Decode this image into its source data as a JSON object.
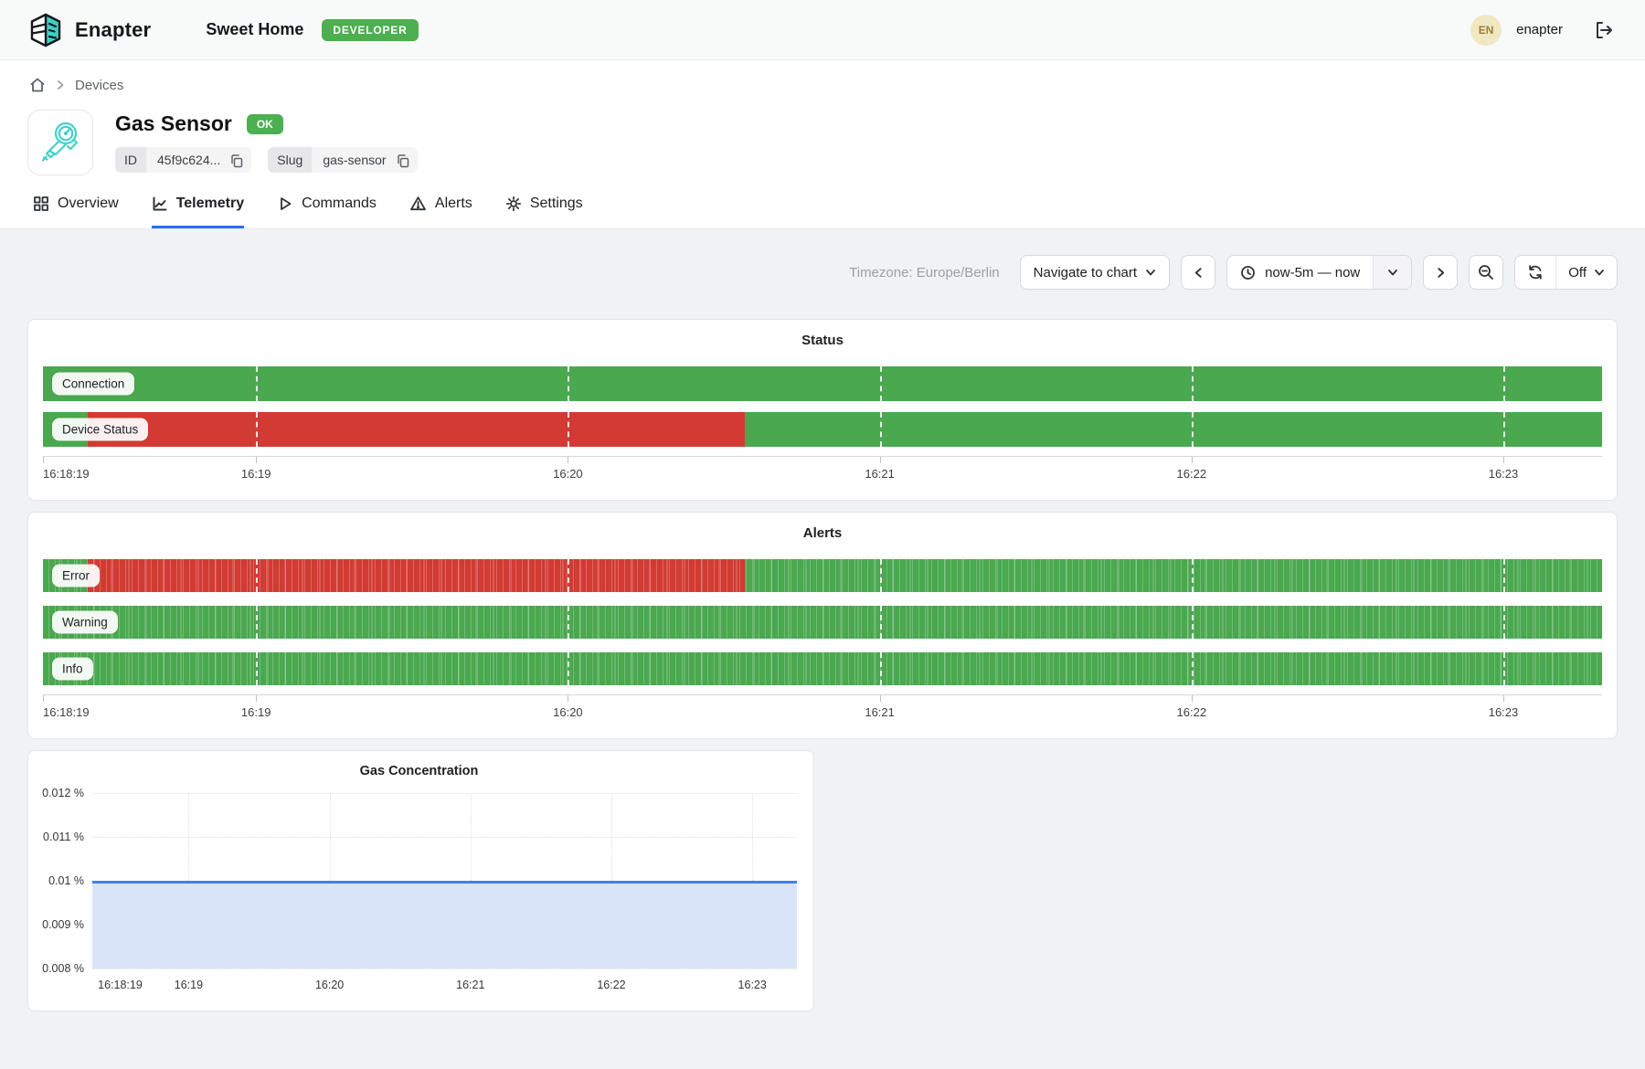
{
  "header": {
    "brand": "Enapter",
    "site_name": "Sweet Home",
    "env_badge": "DEVELOPER",
    "user_initials": "EN",
    "username": "enapter"
  },
  "breadcrumb": {
    "items": [
      "Devices"
    ]
  },
  "device": {
    "name": "Gas Sensor",
    "status_badge": "OK",
    "id_label": "ID",
    "id_value": "45f9c624...",
    "slug_label": "Slug",
    "slug_value": "gas-sensor"
  },
  "tabs": [
    {
      "label": "Overview",
      "active": false
    },
    {
      "label": "Telemetry",
      "active": true
    },
    {
      "label": "Commands",
      "active": false
    },
    {
      "label": "Alerts",
      "active": false
    },
    {
      "label": "Settings",
      "active": false
    }
  ],
  "toolbar": {
    "timezone_label": "Timezone: Europe/Berlin",
    "navigate_label": "Navigate to chart",
    "time_range_label": "now-5m — now",
    "autorefresh_label": "Off"
  },
  "colors": {
    "ok_green": "#4aa84f",
    "error_red": "#d23b33",
    "badge_green": "#4caf50",
    "accent_blue": "#2a6df4",
    "gas_line_blue": "#447eec",
    "gas_fill_blue": "#d9e4f9",
    "logo_teal": "#3ed1c6"
  },
  "chart_data": [
    {
      "type": "heatmap",
      "subtype": "status-timeline",
      "title": "Status",
      "x_range": [
        "16:18:19",
        "16:23:19"
      ],
      "x_ticks": [
        "16:18:19",
        "16:19",
        "16:20",
        "16:21",
        "16:22",
        "16:23"
      ],
      "x_tick_pcts": [
        0,
        13.67,
        33.67,
        53.67,
        73.67,
        93.67
      ],
      "striped": false,
      "colors": {
        "ok": "#4aa84f",
        "error": "#d23b33"
      },
      "rows": [
        {
          "label": "Connection",
          "segments": [
            {
              "state": "ok",
              "from": "16:18:19",
              "to": "16:23:19",
              "from_pct": 0,
              "to_pct": 100
            }
          ]
        },
        {
          "label": "Device Status",
          "segments": [
            {
              "state": "ok",
              "from": "16:18:19",
              "to": "16:18:28",
              "from_pct": 0,
              "to_pct": 2.9
            },
            {
              "state": "error",
              "from": "16:18:28",
              "to": "16:20:34",
              "from_pct": 2.9,
              "to_pct": 45
            },
            {
              "state": "ok",
              "from": "16:20:34",
              "to": "16:23:19",
              "from_pct": 45,
              "to_pct": 100
            }
          ]
        }
      ]
    },
    {
      "type": "heatmap",
      "subtype": "status-timeline",
      "title": "Alerts",
      "x_range": [
        "16:18:19",
        "16:23:19"
      ],
      "x_ticks": [
        "16:18:19",
        "16:19",
        "16:20",
        "16:21",
        "16:22",
        "16:23"
      ],
      "x_tick_pcts": [
        0,
        13.67,
        33.67,
        53.67,
        73.67,
        93.67
      ],
      "striped": true,
      "colors": {
        "ok": "#4aa84f",
        "error": "#d23b33"
      },
      "rows": [
        {
          "label": "Error",
          "segments": [
            {
              "state": "ok",
              "from": "16:18:19",
              "to": "16:18:28",
              "from_pct": 0,
              "to_pct": 2.9
            },
            {
              "state": "error",
              "from": "16:18:28",
              "to": "16:20:34",
              "from_pct": 2.9,
              "to_pct": 45
            },
            {
              "state": "ok",
              "from": "16:20:34",
              "to": "16:23:19",
              "from_pct": 45,
              "to_pct": 100
            }
          ]
        },
        {
          "label": "Warning",
          "segments": [
            {
              "state": "ok",
              "from": "16:18:19",
              "to": "16:23:19",
              "from_pct": 0,
              "to_pct": 100
            }
          ]
        },
        {
          "label": "Info",
          "segments": [
            {
              "state": "ok",
              "from": "16:18:19",
              "to": "16:23:19",
              "from_pct": 0,
              "to_pct": 100
            }
          ]
        }
      ]
    },
    {
      "type": "area",
      "title": "Gas Concentration",
      "unit": "%",
      "x_range": [
        "16:18:19",
        "16:23:19"
      ],
      "x_ticks": [
        "16:18:19",
        "16:19",
        "16:20",
        "16:21",
        "16:22",
        "16:23"
      ],
      "x_tick_pcts": [
        0,
        13.67,
        33.67,
        53.67,
        73.67,
        93.67
      ],
      "y_ticks": [
        "0.012 %",
        "0.011 %",
        "0.01 %",
        "0.009 %",
        "0.008 %"
      ],
      "ylim": [
        0.008,
        0.012
      ],
      "series": [
        {
          "name": "Gas Concentration",
          "points": [
            {
              "x": "16:18:19",
              "y": 0.01
            },
            {
              "x": "16:23:19",
              "y": 0.01
            }
          ]
        }
      ],
      "fill_top_pct": 50,
      "line_color": "#447eec",
      "fill_color": "#d9e4f9",
      "grid": true
    }
  ]
}
